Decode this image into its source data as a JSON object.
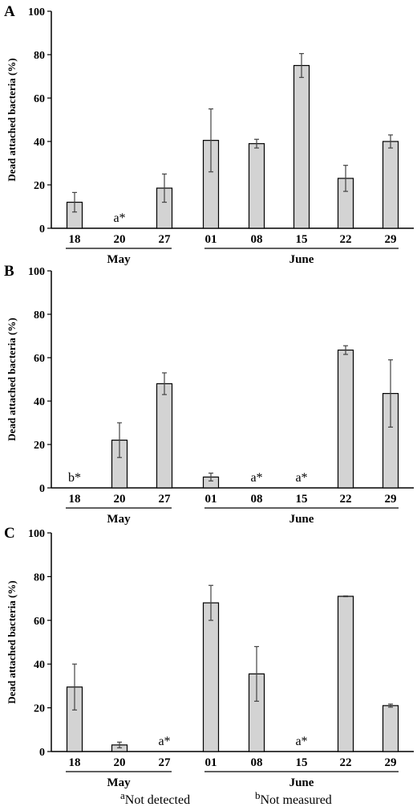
{
  "chart_data": [
    {
      "type": "bar",
      "panel_label": "A",
      "ylabel": "Dead attached bacteria (%)",
      "ylim": [
        0,
        100
      ],
      "yticks": [
        0,
        20,
        40,
        60,
        80,
        100
      ],
      "categories": [
        "18",
        "20",
        "27",
        "01",
        "08",
        "15",
        "22",
        "29"
      ],
      "values": [
        12,
        null,
        18.5,
        40.5,
        39,
        75,
        23,
        40
      ],
      "errors": [
        4.5,
        null,
        6.5,
        14.5,
        2,
        5.5,
        6,
        3
      ],
      "annotations": [
        null,
        "a*",
        null,
        null,
        null,
        null,
        null,
        null
      ],
      "groups": [
        {
          "label": "May",
          "categories": [
            "18",
            "20",
            "27"
          ]
        },
        {
          "label": "June",
          "categories": [
            "01",
            "08",
            "15",
            "22",
            "29"
          ]
        }
      ],
      "bar_color": "#d3d3d3"
    },
    {
      "type": "bar",
      "panel_label": "B",
      "ylabel": "Dead attached bacteria (%)",
      "ylim": [
        0,
        100
      ],
      "yticks": [
        0,
        20,
        40,
        60,
        80,
        100
      ],
      "categories": [
        "18",
        "20",
        "27",
        "01",
        "08",
        "15",
        "22",
        "29"
      ],
      "values": [
        null,
        22,
        48,
        5,
        null,
        null,
        63.5,
        43.5
      ],
      "errors": [
        null,
        8,
        5,
        1.8,
        null,
        null,
        2,
        15.5
      ],
      "annotations": [
        "b*",
        null,
        null,
        null,
        "a*",
        "a*",
        null,
        null
      ],
      "groups": [
        {
          "label": "May",
          "categories": [
            "18",
            "20",
            "27"
          ]
        },
        {
          "label": "June",
          "categories": [
            "01",
            "08",
            "15",
            "22",
            "29"
          ]
        }
      ],
      "bar_color": "#d3d3d3"
    },
    {
      "type": "bar",
      "panel_label": "C",
      "ylabel": "Dead attached bacteria (%)",
      "ylim": [
        0,
        100
      ],
      "yticks": [
        0,
        20,
        40,
        60,
        80,
        100
      ],
      "categories": [
        "18",
        "20",
        "27",
        "01",
        "08",
        "15",
        "22",
        "29"
      ],
      "values": [
        29.5,
        3,
        null,
        68,
        35.5,
        null,
        71,
        21
      ],
      "errors": [
        10.5,
        1.3,
        null,
        8,
        12.5,
        null,
        0.2,
        0.7
      ],
      "annotations": [
        null,
        null,
        "a*",
        null,
        null,
        "a*",
        null,
        null
      ],
      "groups": [
        {
          "label": "May",
          "categories": [
            "18",
            "20",
            "27"
          ]
        },
        {
          "label": "June",
          "categories": [
            "01",
            "08",
            "15",
            "22",
            "29"
          ]
        }
      ],
      "bar_color": "#d3d3d3"
    }
  ],
  "footnotes": [
    {
      "mark": "a",
      "text": "Not detected"
    },
    {
      "mark": "b",
      "text": "Not measured"
    }
  ]
}
